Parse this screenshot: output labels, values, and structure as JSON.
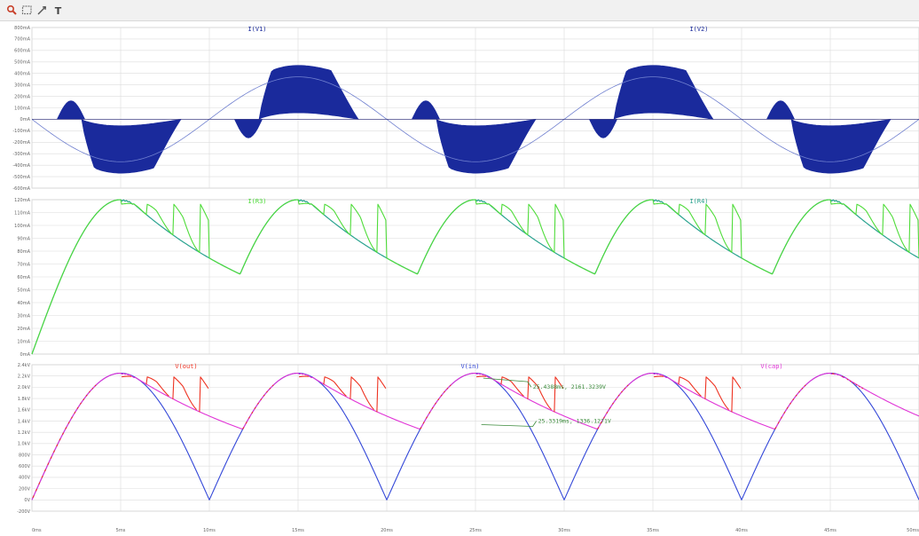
{
  "toolbar": {
    "tools": [
      {
        "name": "zoom-tool-icon"
      },
      {
        "name": "zoom-box-icon"
      },
      {
        "name": "pan-tool-icon"
      },
      {
        "name": "text-tool-icon",
        "glyph": "T"
      }
    ]
  },
  "colors": {
    "grid": "#dcdcdc",
    "axis_label": "#666666",
    "dark_blue": "#1a2a9c",
    "teal": "#2aa38f",
    "green": "#4fdc3a",
    "red": "#ee3322",
    "blue": "#3347d8",
    "magenta": "#e034d6",
    "cursor_green": "#3a8a3a"
  },
  "chart_data": [
    {
      "type": "line",
      "id": "pane-top",
      "y_tick_labels": [
        "800mA",
        "700mA",
        "600mA",
        "500mA",
        "400mA",
        "300mA",
        "200mA",
        "100mA",
        "0mA",
        "-100mA",
        "-200mA",
        "-300mA",
        "-400mA",
        "-500mA",
        "-600mA"
      ],
      "ylim": [
        -600,
        800
      ],
      "unit": "mA",
      "legend": [
        {
          "label": "I(V1)",
          "color": "dark_blue",
          "position": "left"
        },
        {
          "label": "I(V2)",
          "color": "dark_blue",
          "position": "right"
        }
      ],
      "series": [
        {
          "name": "I(V1)",
          "style": "dense-envelope",
          "positive_peak_mA": 470,
          "negative_peak_mA": -470,
          "envelope_period_ms": 10
        },
        {
          "name": "I(V2)",
          "style": "thin-sine",
          "amplitude_mA": 370,
          "period_ms": 20
        }
      ]
    },
    {
      "type": "line",
      "id": "pane-middle",
      "y_tick_labels": [
        "120mA",
        "110mA",
        "100mA",
        "90mA",
        "80mA",
        "70mA",
        "60mA",
        "50mA",
        "40mA",
        "30mA",
        "20mA",
        "10mA",
        "0mA"
      ],
      "ylim": [
        0,
        120
      ],
      "unit": "mA",
      "legend": [
        {
          "label": "I(R3)",
          "color": "green",
          "position": "left"
        },
        {
          "label": "I(R4)",
          "color": "teal",
          "position": "right"
        }
      ],
      "series": [
        {
          "name": "I(R4)",
          "color": "teal",
          "peak_mA": 120,
          "decay_floor_mA": 63
        },
        {
          "name": "I(R3)",
          "color": "green",
          "peak_mA": 120,
          "ripple_low_mA": 72
        }
      ]
    },
    {
      "type": "line",
      "id": "pane-bottom",
      "y_tick_labels": [
        "2.4kV",
        "2.2kV",
        "2.0kV",
        "1.8kV",
        "1.6kV",
        "1.4kV",
        "1.2kV",
        "1.0kV",
        "800V",
        "600V",
        "400V",
        "200V",
        "0V",
        "-200V"
      ],
      "ylim": [
        -200,
        2400
      ],
      "unit": "V",
      "legend": [
        {
          "label": "V(out)",
          "color": "red",
          "position": "left"
        },
        {
          "label": "V(in)",
          "color": "blue",
          "position": "center"
        },
        {
          "label": "V(cap)",
          "color": "magenta",
          "position": "right"
        }
      ],
      "series": [
        {
          "name": "V(in)",
          "color": "blue",
          "peak_V": 2250,
          "min_V": 0
        },
        {
          "name": "V(cap)",
          "color": "magenta",
          "peak_V": 2250,
          "floor_V": 1500
        },
        {
          "name": "V(out)",
          "color": "red",
          "peak_V": 2250,
          "ripple_low_V": 1500
        }
      ],
      "cursors": [
        {
          "label": "25.4388ms, 2161.3239V"
        },
        {
          "label": "25.3319ms, 1336.1271V"
        }
      ]
    }
  ],
  "x_axis": {
    "unit": "ms",
    "xlim": [
      0,
      50
    ],
    "tick_labels": [
      "0ms",
      "5ms",
      "10ms",
      "15ms",
      "20ms",
      "25ms",
      "30ms",
      "35ms",
      "40ms",
      "45ms",
      "50ms"
    ]
  }
}
